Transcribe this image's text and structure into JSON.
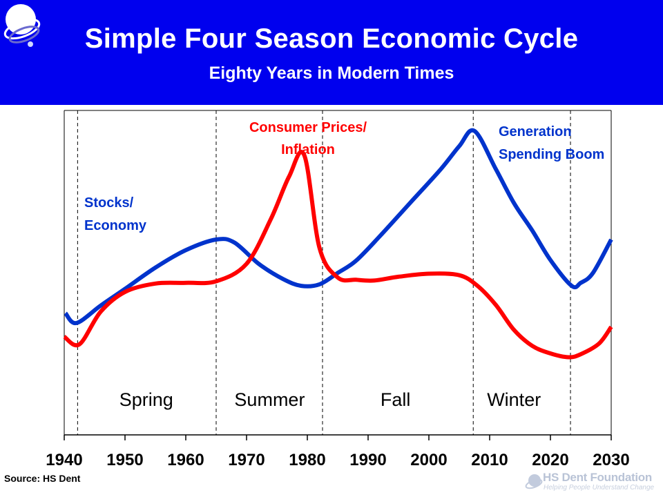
{
  "header": {
    "title": "Simple Four Season Economic Cycle",
    "subtitle": "Eighty Years in Modern Times"
  },
  "chart_data": {
    "type": "line",
    "title": "Simple Four Season Economic Cycle",
    "subtitle": "Eighty Years in Modern Times",
    "xlabel": "",
    "ylabel": "",
    "xlim": [
      1940,
      2030
    ],
    "x_ticks": [
      1940,
      1950,
      1960,
      1970,
      1980,
      1990,
      2000,
      2010,
      2020,
      2030
    ],
    "y_axis_shown": false,
    "grid": false,
    "series": [
      {
        "name": "Stocks/ Economy",
        "color": "#0033cc",
        "points": [
          [
            1940.2,
            6.3
          ],
          [
            1942,
            5.0
          ],
          [
            1946,
            7.3
          ],
          [
            1950,
            9.5
          ],
          [
            1955,
            12.3
          ],
          [
            1960,
            14.6
          ],
          [
            1965,
            16.0
          ],
          [
            1968,
            15.6
          ],
          [
            1972,
            12.8
          ],
          [
            1976,
            10.8
          ],
          [
            1979,
            9.9
          ],
          [
            1982,
            10.1
          ],
          [
            1985,
            11.6
          ],
          [
            1988,
            13.2
          ],
          [
            1992,
            16.5
          ],
          [
            1997,
            20.9
          ],
          [
            2002,
            25.3
          ],
          [
            2005,
            28.3
          ],
          [
            2007.5,
            30.3
          ],
          [
            2011,
            25.3
          ],
          [
            2014,
            20.8
          ],
          [
            2017,
            17.2
          ],
          [
            2020,
            13.3
          ],
          [
            2023.5,
            9.9
          ],
          [
            2025,
            10.3
          ],
          [
            2027,
            11.6
          ],
          [
            2030,
            16.0
          ]
        ]
      },
      {
        "name": "Consumer Prices/ Inflation",
        "color": "#ff0000",
        "points": [
          [
            1940,
            3.2
          ],
          [
            1942.5,
            2.2
          ],
          [
            1946,
            6.5
          ],
          [
            1950,
            9.1
          ],
          [
            1955,
            10.2
          ],
          [
            1960,
            10.3
          ],
          [
            1965,
            10.5
          ],
          [
            1970,
            12.8
          ],
          [
            1974,
            18.7
          ],
          [
            1977,
            24.3
          ],
          [
            1979.5,
            27.1
          ],
          [
            1982,
            14.9
          ],
          [
            1985,
            11.0
          ],
          [
            1988,
            10.7
          ],
          [
            1991,
            10.6
          ],
          [
            1995,
            11.1
          ],
          [
            2000,
            11.5
          ],
          [
            2005,
            11.3
          ],
          [
            2008,
            9.9
          ],
          [
            2011,
            7.4
          ],
          [
            2014,
            4.1
          ],
          [
            2017,
            2.0
          ],
          [
            2020,
            1.0
          ],
          [
            2023,
            0.5
          ],
          [
            2025,
            0.9
          ],
          [
            2028,
            2.3
          ],
          [
            2030,
            4.5
          ]
        ]
      }
    ],
    "season_dividers": [
      1942.2,
      1965,
      1982.5,
      2007.3,
      2023.3
    ],
    "seasons": [
      {
        "label": "Spring",
        "x": 1953.5
      },
      {
        "label": "Summer",
        "x": 1973.8
      },
      {
        "label": "Fall",
        "x": 1994.5
      },
      {
        "label": "Winter",
        "x": 2014
      }
    ],
    "annotations": [
      {
        "line1": "Stocks/",
        "line2": "Economy",
        "color": "#0033cc"
      },
      {
        "line1": "Consumer Prices/",
        "line2": "Inflation",
        "color": "#ff0000"
      },
      {
        "line1": "Generation",
        "line2": "Spending Boom",
        "color": "#0033cc"
      }
    ]
  },
  "footer": {
    "source": "Source: HS Dent",
    "logo_name": "HS Dent Foundation",
    "logo_tagline": "Helping People Understand Change"
  }
}
